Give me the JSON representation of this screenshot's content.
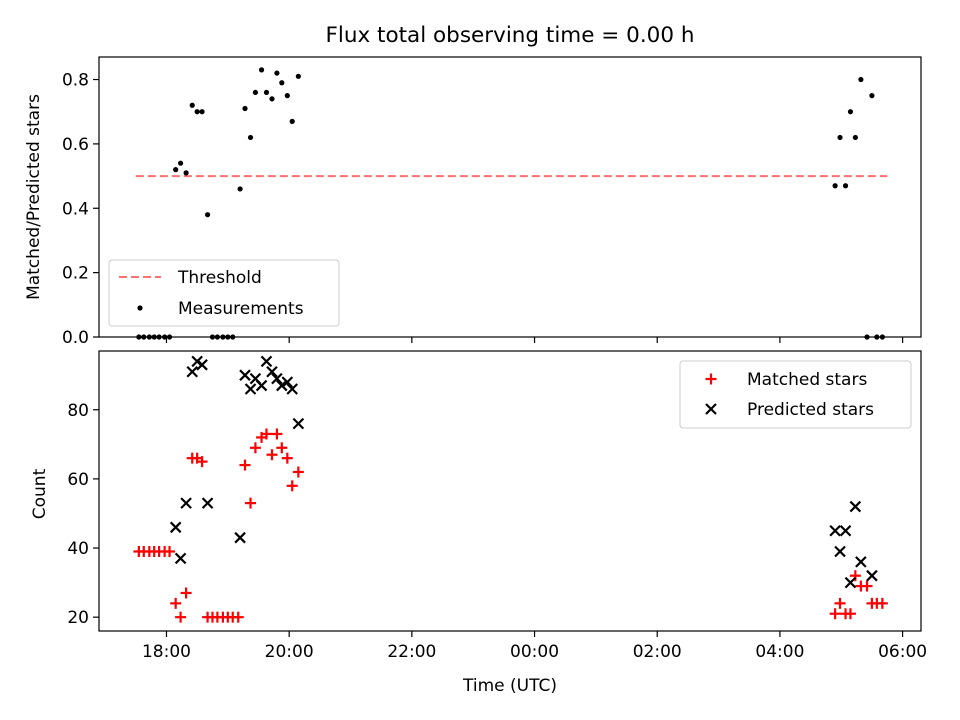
{
  "title": "Flux total observing time = 0.00 h",
  "x_time_labels": [
    "18:00",
    "20:00",
    "22:00",
    "00:00",
    "02:00",
    "04:00",
    "06:00"
  ],
  "chart_data": [
    {
      "type": "scatter",
      "title": "Flux total observing time = 0.00 h",
      "xlabel": "",
      "ylabel": "Matched/Predicted stars",
      "xlim_hours": [
        16.9,
        30.3
      ],
      "ylim": [
        0.0,
        0.87
      ],
      "yticks": [
        0.0,
        0.2,
        0.4,
        0.6,
        0.8
      ],
      "legend": "lower-left",
      "threshold": {
        "name": "Threshold",
        "value": 0.5,
        "x_range": [
          17.5,
          29.75
        ],
        "color": "#ff7070",
        "style": "dashed"
      },
      "series": [
        {
          "name": "Measurements",
          "color": "#000000",
          "marker": "dot",
          "points": [
            [
              17.55,
              0.0
            ],
            [
              17.63,
              0.0
            ],
            [
              17.72,
              0.0
            ],
            [
              17.8,
              0.0
            ],
            [
              17.88,
              0.0
            ],
            [
              17.97,
              0.0
            ],
            [
              18.05,
              0.0
            ],
            [
              18.15,
              0.52
            ],
            [
              18.23,
              0.54
            ],
            [
              18.32,
              0.51
            ],
            [
              18.42,
              0.72
            ],
            [
              18.5,
              0.7
            ],
            [
              18.58,
              0.7
            ],
            [
              18.67,
              0.38
            ],
            [
              18.75,
              0.0
            ],
            [
              18.83,
              0.0
            ],
            [
              18.92,
              0.0
            ],
            [
              19.0,
              0.0
            ],
            [
              19.08,
              0.0
            ],
            [
              19.2,
              0.46
            ],
            [
              19.28,
              0.71
            ],
            [
              19.37,
              0.62
            ],
            [
              19.45,
              0.76
            ],
            [
              19.55,
              0.83
            ],
            [
              19.63,
              0.76
            ],
            [
              19.72,
              0.74
            ],
            [
              19.8,
              0.82
            ],
            [
              19.88,
              0.79
            ],
            [
              19.97,
              0.75
            ],
            [
              20.05,
              0.67
            ],
            [
              20.15,
              0.81
            ],
            [
              28.9,
              0.47
            ],
            [
              28.98,
              0.62
            ],
            [
              29.07,
              0.47
            ],
            [
              29.15,
              0.7
            ],
            [
              29.23,
              0.62
            ],
            [
              29.32,
              0.8
            ],
            [
              29.42,
              0.0
            ],
            [
              29.5,
              0.75
            ],
            [
              29.58,
              0.0
            ],
            [
              29.67,
              0.0
            ]
          ]
        }
      ]
    },
    {
      "type": "scatter",
      "title": "",
      "xlabel": "Time (UTC)",
      "ylabel": "Count",
      "xlim_hours": [
        16.9,
        30.3
      ],
      "ylim": [
        16.0,
        97.0
      ],
      "yticks": [
        20,
        40,
        60,
        80
      ],
      "legend": "top-right",
      "series": [
        {
          "name": "Matched stars",
          "color": "#ff0000",
          "marker": "plus",
          "points": [
            [
              17.55,
              39
            ],
            [
              17.63,
              39
            ],
            [
              17.72,
              39
            ],
            [
              17.8,
              39
            ],
            [
              17.88,
              39
            ],
            [
              17.97,
              39
            ],
            [
              18.05,
              39
            ],
            [
              18.15,
              24
            ],
            [
              18.23,
              20
            ],
            [
              18.32,
              27
            ],
            [
              18.42,
              66
            ],
            [
              18.5,
              66
            ],
            [
              18.58,
              65
            ],
            [
              18.67,
              20
            ],
            [
              18.75,
              20
            ],
            [
              18.83,
              20
            ],
            [
              18.92,
              20
            ],
            [
              19.0,
              20
            ],
            [
              19.08,
              20
            ],
            [
              19.17,
              20
            ],
            [
              19.28,
              64
            ],
            [
              19.37,
              53
            ],
            [
              19.45,
              69
            ],
            [
              19.55,
              72
            ],
            [
              19.63,
              73
            ],
            [
              19.72,
              67
            ],
            [
              19.8,
              73
            ],
            [
              19.88,
              69
            ],
            [
              19.97,
              66
            ],
            [
              20.05,
              58
            ],
            [
              20.15,
              62
            ],
            [
              28.9,
              21
            ],
            [
              28.98,
              24
            ],
            [
              29.07,
              21
            ],
            [
              29.15,
              21
            ],
            [
              29.23,
              32
            ],
            [
              29.32,
              29
            ],
            [
              29.42,
              29
            ],
            [
              29.5,
              24
            ],
            [
              29.58,
              24
            ],
            [
              29.67,
              24
            ]
          ]
        },
        {
          "name": "Predicted stars",
          "color": "#000000",
          "marker": "x",
          "points": [
            [
              18.15,
              46
            ],
            [
              18.23,
              37
            ],
            [
              18.32,
              53
            ],
            [
              18.42,
              91
            ],
            [
              18.5,
              94
            ],
            [
              18.58,
              93
            ],
            [
              18.67,
              53
            ],
            [
              19.2,
              43
            ],
            [
              19.28,
              90
            ],
            [
              19.37,
              86
            ],
            [
              19.45,
              89
            ],
            [
              19.55,
              87
            ],
            [
              19.63,
              94
            ],
            [
              19.72,
              91
            ],
            [
              19.8,
              89
            ],
            [
              19.88,
              87
            ],
            [
              19.97,
              88
            ],
            [
              20.05,
              86
            ],
            [
              20.15,
              76
            ],
            [
              28.9,
              45
            ],
            [
              28.98,
              39
            ],
            [
              29.07,
              45
            ],
            [
              29.15,
              30
            ],
            [
              29.23,
              52
            ],
            [
              29.32,
              36
            ],
            [
              29.5,
              32
            ]
          ]
        }
      ]
    }
  ]
}
